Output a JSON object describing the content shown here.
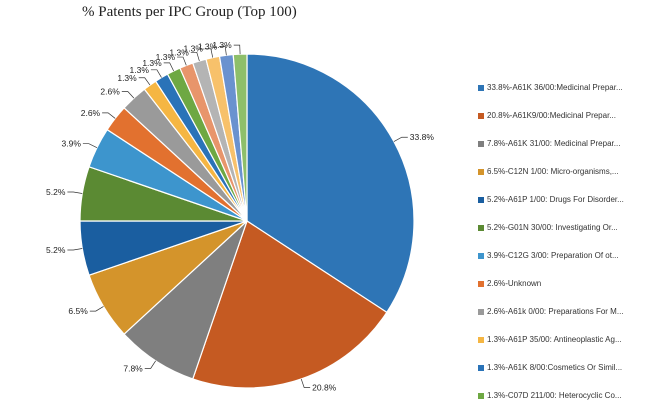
{
  "colors": {
    "slices": [
      "#2E75B6",
      "#C55A22",
      "#7F7F7F",
      "#D4942B",
      "#1A5EA0",
      "#5B8A33",
      "#3D95CD",
      "#E2712F",
      "#9A9A9A",
      "#F5B643",
      "#2A73B8",
      "#6EA843",
      "#E8956B",
      "#B4B4B4",
      "#F7C16B",
      "#6A92CF",
      "#8EBF6A"
    ]
  },
  "chart_data": {
    "type": "pie",
    "title": "% Patents per IPC Group (Top 100)",
    "slices": [
      {
        "label": "33.8%",
        "value": 33.8
      },
      {
        "label": "20.8%",
        "value": 20.8
      },
      {
        "label": "7.8%",
        "value": 7.8
      },
      {
        "label": "6.5%",
        "value": 6.5
      },
      {
        "label": "5.2%",
        "value": 5.2
      },
      {
        "label": "5.2%",
        "value": 5.2
      },
      {
        "label": "3.9%",
        "value": 3.9
      },
      {
        "label": "2.6%",
        "value": 2.6
      },
      {
        "label": "2.6%",
        "value": 2.6
      },
      {
        "label": "1.3%",
        "value": 1.3
      },
      {
        "label": "1.3%",
        "value": 1.3
      },
      {
        "label": "1.3%",
        "value": 1.3
      },
      {
        "label": "1.3%",
        "value": 1.3
      },
      {
        "label": "1.3%",
        "value": 1.3
      },
      {
        "label": "1.3%",
        "value": 1.3
      },
      {
        "label": "1.3%",
        "value": 1.3
      },
      {
        "label": "1.3%",
        "value": 1.3
      }
    ],
    "legend": [
      "33.8%-A61K 36/00:Medicinal Prepar...",
      "20.8%-A61K9/00:Medicinal Prepar...",
      "7.8%-A61K 31/00: Medicinal Prepar...",
      "6.5%-C12N 1/00: Micro-organisms,...",
      "5.2%-A61P 1/00: Drugs For Disorder...",
      "5.2%-G01N 30/00: Investigating Or...",
      "3.9%-C12G 3/00: Preparation Of ot...",
      "2.6%-Unknown",
      "2.6%-A61k 0/00: Preparations For M...",
      "1.3%-A61P 35/00: Antineoplastic Ag...",
      "1.3%-A61K 8/00:Cosmetics Or Simil...",
      "1.3%-C07D 211/00: Heterocyclic Co..."
    ],
    "legend_position": "right"
  }
}
